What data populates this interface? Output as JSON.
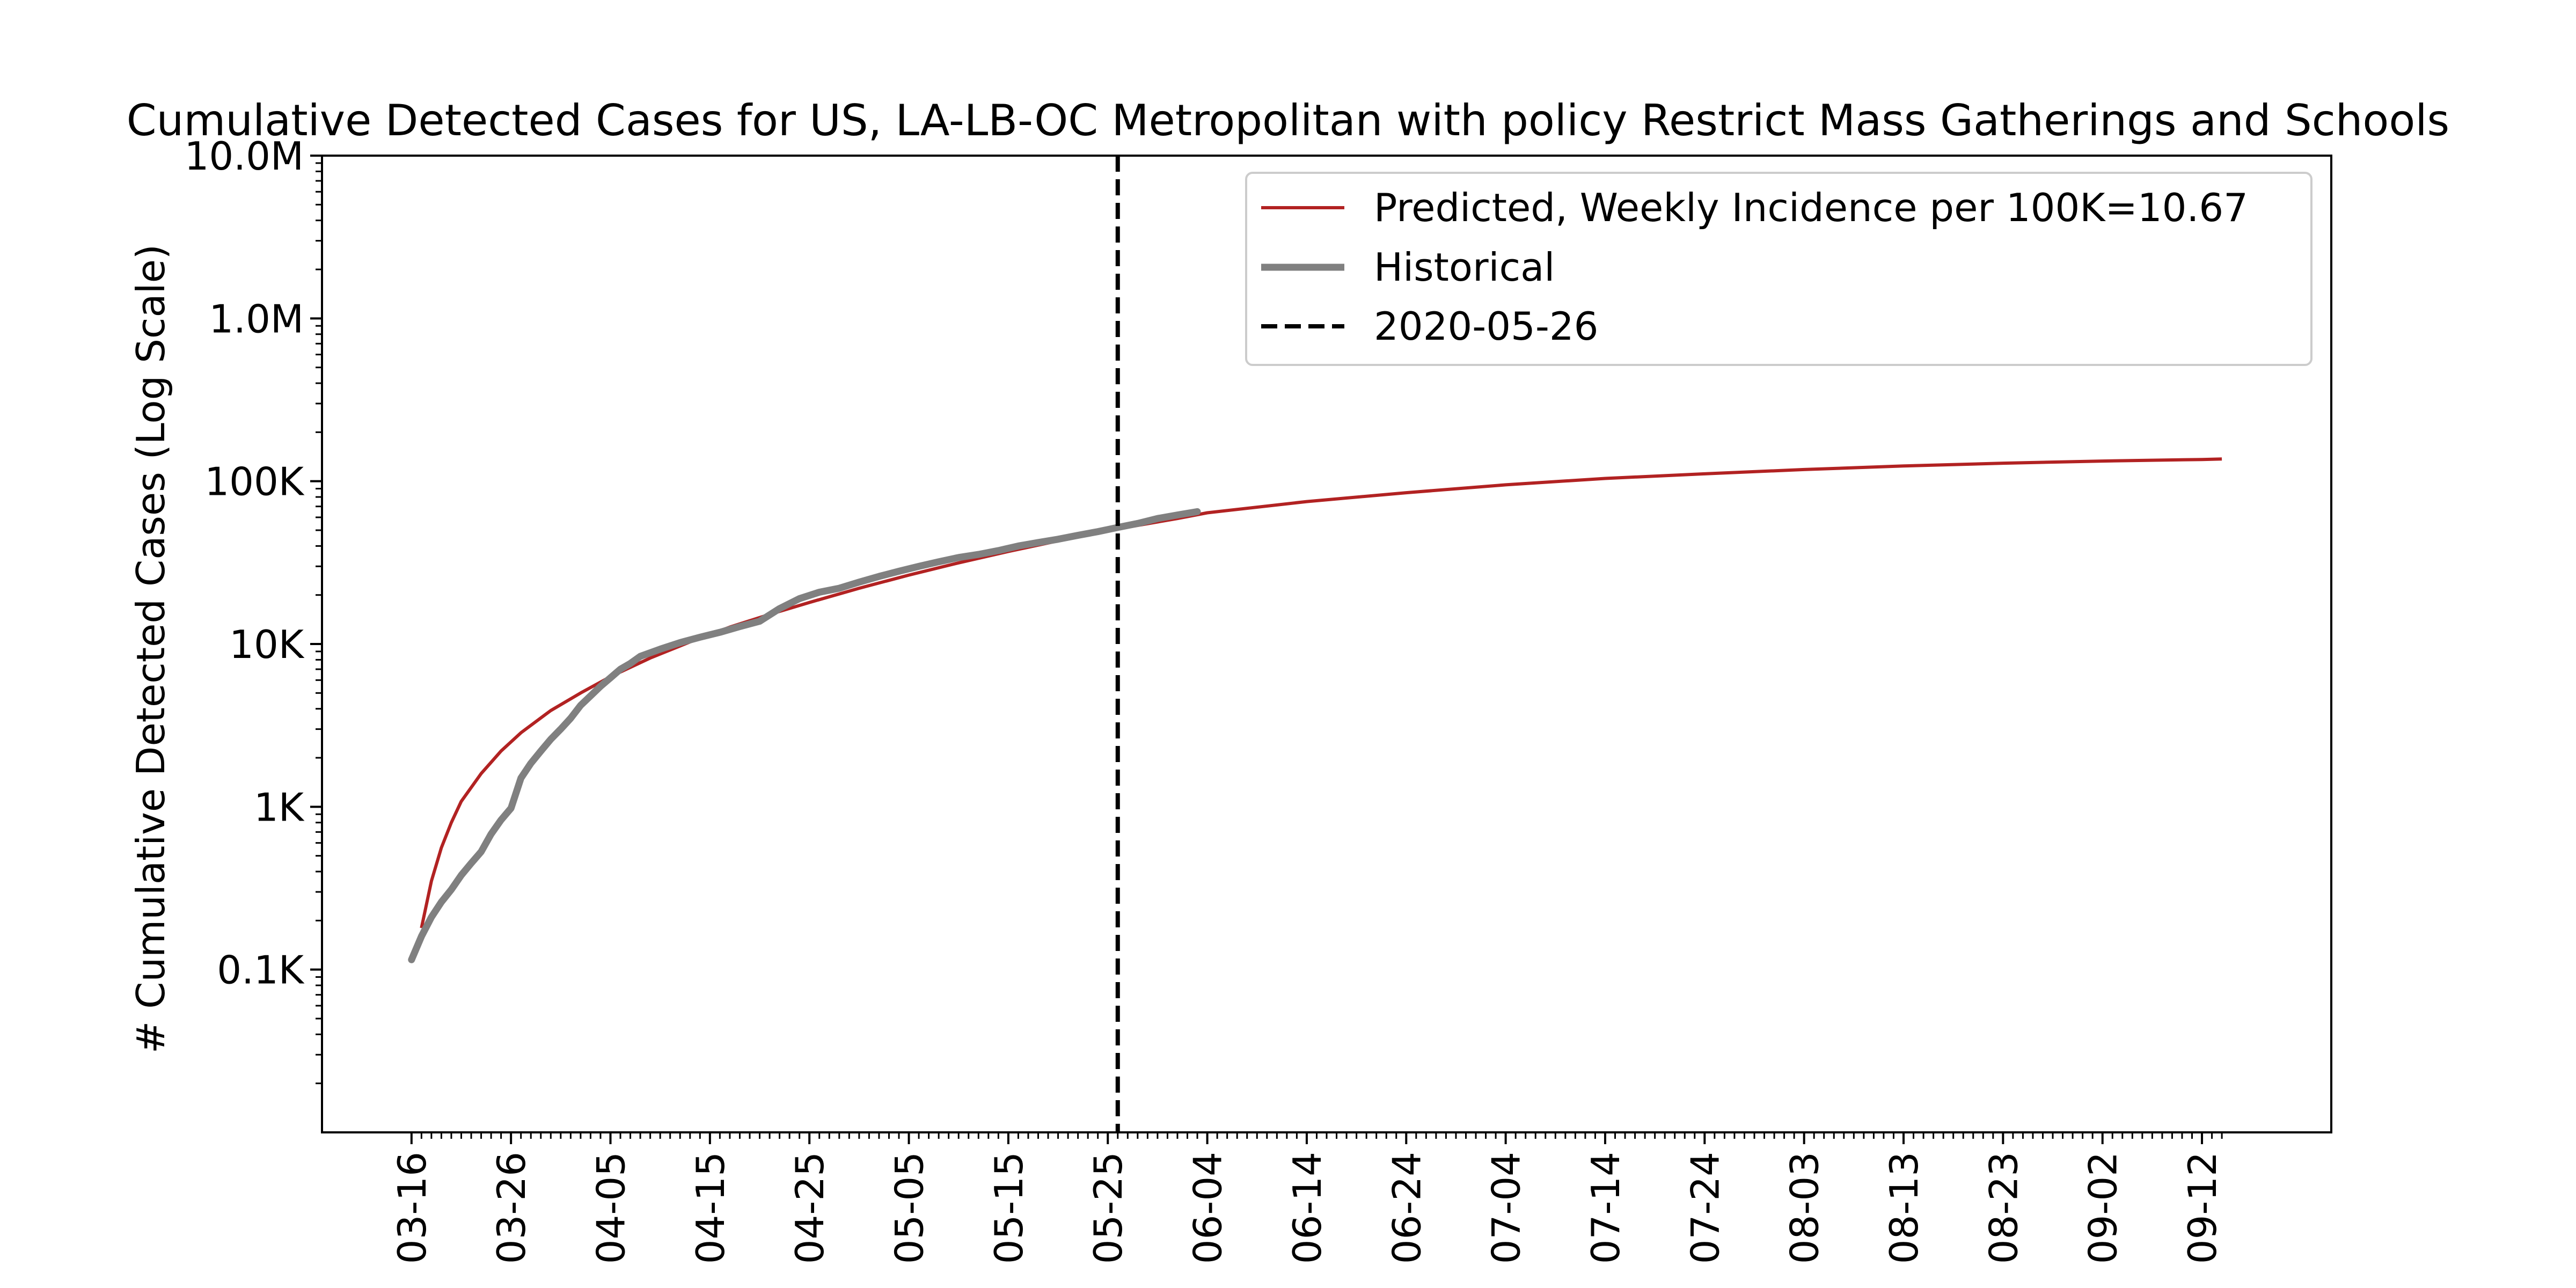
{
  "chart_data": {
    "type": "line",
    "title": "Cumulative Detected Cases for US, LA-LB-OC Metropolitan with policy Restrict Mass Gatherings and Schools",
    "ylabel": "# Cumulative Detected Cases (Log Scale)",
    "xlabel": "",
    "y_scale": "log",
    "ylim": [
      10,
      10000000
    ],
    "xlim": [
      "2020-03-07",
      "2020-09-25"
    ],
    "y_ticks": [
      {
        "value": 100,
        "label": "0.1K"
      },
      {
        "value": 1000,
        "label": "1K"
      },
      {
        "value": 10000,
        "label": "10K"
      },
      {
        "value": 100000,
        "label": "100K"
      },
      {
        "value": 1000000,
        "label": "1.0M"
      },
      {
        "value": 10000000,
        "label": "10.0M"
      }
    ],
    "x_ticks": [
      {
        "date": "2020-03-16",
        "label": "03-16"
      },
      {
        "date": "2020-03-26",
        "label": "03-26"
      },
      {
        "date": "2020-04-05",
        "label": "04-05"
      },
      {
        "date": "2020-04-15",
        "label": "04-15"
      },
      {
        "date": "2020-04-25",
        "label": "04-25"
      },
      {
        "date": "2020-05-05",
        "label": "05-05"
      },
      {
        "date": "2020-05-15",
        "label": "05-15"
      },
      {
        "date": "2020-05-25",
        "label": "05-25"
      },
      {
        "date": "2020-06-04",
        "label": "06-04"
      },
      {
        "date": "2020-06-14",
        "label": "06-14"
      },
      {
        "date": "2020-06-24",
        "label": "06-24"
      },
      {
        "date": "2020-07-04",
        "label": "07-04"
      },
      {
        "date": "2020-07-14",
        "label": "07-14"
      },
      {
        "date": "2020-07-24",
        "label": "07-24"
      },
      {
        "date": "2020-08-03",
        "label": "08-03"
      },
      {
        "date": "2020-08-13",
        "label": "08-13"
      },
      {
        "date": "2020-08-23",
        "label": "08-23"
      },
      {
        "date": "2020-09-02",
        "label": "09-02"
      },
      {
        "date": "2020-09-12",
        "label": "09-12"
      }
    ],
    "minor_tick_start": "2020-03-16",
    "minor_tick_end": "2020-09-14",
    "vline": {
      "date": "2020-05-26",
      "label": "2020-05-26",
      "color": "#000000"
    },
    "legend_position": "top-right",
    "series": [
      {
        "name": "Predicted, Weekly Incidence per 100K=10.67",
        "color": "#b22222",
        "points": [
          [
            "2020-03-17",
            180
          ],
          [
            "2020-03-18",
            350
          ],
          [
            "2020-03-19",
            560
          ],
          [
            "2020-03-20",
            800
          ],
          [
            "2020-03-21",
            1080
          ],
          [
            "2020-03-23",
            1600
          ],
          [
            "2020-03-25",
            2200
          ],
          [
            "2020-03-27",
            2850
          ],
          [
            "2020-03-30",
            3900
          ],
          [
            "2020-04-02",
            5000
          ],
          [
            "2020-04-05",
            6300
          ],
          [
            "2020-04-09",
            8200
          ],
          [
            "2020-04-13",
            10300
          ],
          [
            "2020-04-17",
            12700
          ],
          [
            "2020-04-21",
            15200
          ],
          [
            "2020-04-25",
            18000
          ],
          [
            "2020-04-30",
            22000
          ],
          [
            "2020-05-05",
            26500
          ],
          [
            "2020-05-10",
            31500
          ],
          [
            "2020-05-15",
            37000
          ],
          [
            "2020-05-20",
            43000
          ],
          [
            "2020-05-26",
            51000
          ],
          [
            "2020-06-01",
            59000
          ],
          [
            "2020-06-04",
            64000
          ],
          [
            "2020-06-14",
            75000
          ],
          [
            "2020-06-24",
            85000
          ],
          [
            "2020-07-04",
            95000
          ],
          [
            "2020-07-14",
            104000
          ],
          [
            "2020-07-24",
            111000
          ],
          [
            "2020-08-03",
            118000
          ],
          [
            "2020-08-13",
            124000
          ],
          [
            "2020-08-23",
            129000
          ],
          [
            "2020-09-02",
            133000
          ],
          [
            "2020-09-12",
            136000
          ],
          [
            "2020-09-14",
            137000
          ]
        ]
      },
      {
        "name": "Historical",
        "color": "#808080",
        "points": [
          [
            "2020-03-16",
            115
          ],
          [
            "2020-03-17",
            160
          ],
          [
            "2020-03-18",
            210
          ],
          [
            "2020-03-19",
            260
          ],
          [
            "2020-03-20",
            310
          ],
          [
            "2020-03-21",
            380
          ],
          [
            "2020-03-22",
            450
          ],
          [
            "2020-03-23",
            530
          ],
          [
            "2020-03-24",
            680
          ],
          [
            "2020-03-25",
            830
          ],
          [
            "2020-03-26",
            980
          ],
          [
            "2020-03-27",
            1500
          ],
          [
            "2020-03-28",
            1850
          ],
          [
            "2020-03-29",
            2200
          ],
          [
            "2020-03-30",
            2600
          ],
          [
            "2020-03-31",
            3000
          ],
          [
            "2020-04-01",
            3500
          ],
          [
            "2020-04-02",
            4200
          ],
          [
            "2020-04-03",
            4800
          ],
          [
            "2020-04-04",
            5500
          ],
          [
            "2020-04-05",
            6200
          ],
          [
            "2020-04-06",
            7000
          ],
          [
            "2020-04-07",
            7600
          ],
          [
            "2020-04-08",
            8400
          ],
          [
            "2020-04-10",
            9300
          ],
          [
            "2020-04-12",
            10200
          ],
          [
            "2020-04-14",
            11000
          ],
          [
            "2020-04-16",
            11800
          ],
          [
            "2020-04-18",
            12800
          ],
          [
            "2020-04-20",
            13800
          ],
          [
            "2020-04-22",
            16500
          ],
          [
            "2020-04-24",
            19000
          ],
          [
            "2020-04-26",
            20800
          ],
          [
            "2020-04-28",
            22000
          ],
          [
            "2020-04-30",
            24000
          ],
          [
            "2020-05-02",
            26000
          ],
          [
            "2020-05-04",
            28000
          ],
          [
            "2020-05-06",
            30000
          ],
          [
            "2020-05-08",
            32000
          ],
          [
            "2020-05-10",
            34000
          ],
          [
            "2020-05-12",
            35500
          ],
          [
            "2020-05-14",
            37500
          ],
          [
            "2020-05-16",
            40000
          ],
          [
            "2020-05-18",
            42000
          ],
          [
            "2020-05-20",
            44000
          ],
          [
            "2020-05-22",
            46500
          ],
          [
            "2020-05-24",
            49000
          ],
          [
            "2020-05-26",
            52000
          ],
          [
            "2020-05-28",
            55000
          ],
          [
            "2020-05-30",
            59000
          ],
          [
            "2020-06-01",
            62000
          ],
          [
            "2020-06-03",
            65000
          ]
        ]
      }
    ]
  },
  "legend": {
    "predicted_label": "Predicted, Weekly Incidence per 100K=10.67",
    "historical_label": "Historical",
    "vline_label": "2020-05-26"
  }
}
